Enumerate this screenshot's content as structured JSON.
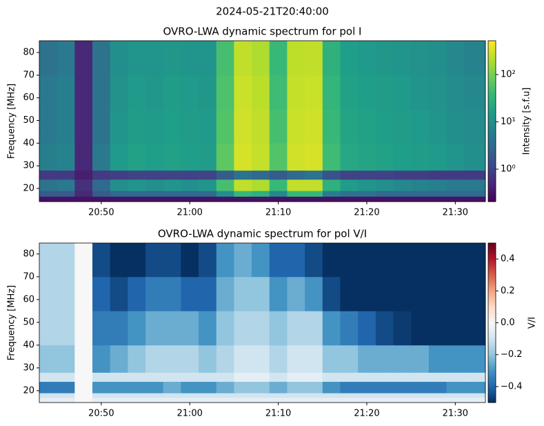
{
  "title": "2024-05-21T20:40:00",
  "chart_data": [
    {
      "type": "heatmap",
      "title": "OVRO-LWA dynamic spectrum for pol I",
      "ylabel": "Frequency [MHz]",
      "x": [
        1243,
        1245,
        1247,
        1249,
        1251,
        1253,
        1255,
        1257,
        1259,
        1261,
        1263,
        1265,
        1267,
        1269,
        1271,
        1273,
        1275,
        1277,
        1279,
        1281,
        1283,
        1285,
        1287,
        1289,
        1291,
        1293.4
      ],
      "y": [
        14.2,
        16.5,
        19,
        24,
        28,
        40,
        55,
        70,
        85.2
      ],
      "z": [
        [
          0.3,
          0.3,
          0.3,
          0.3,
          0.3,
          0.3,
          0.3,
          0.3,
          0.3,
          0.3,
          0.3,
          0.3,
          0.3,
          0.3,
          0.3,
          0.3,
          0.3,
          0.3,
          0.3,
          0.3,
          0.3,
          0.3,
          0.3,
          0.3,
          0.3
        ],
        [
          2,
          2,
          0.5,
          2,
          3,
          3,
          3,
          3,
          3,
          3,
          10,
          40,
          30,
          8,
          40,
          40,
          6,
          4,
          4,
          3,
          3,
          3,
          3,
          3,
          3
        ],
        [
          4,
          5,
          0.6,
          3,
          10,
          12,
          10,
          12,
          10,
          12,
          50,
          250,
          200,
          40,
          250,
          250,
          30,
          15,
          12,
          10,
          8,
          7,
          6,
          5,
          5
        ],
        [
          0.8,
          0.8,
          0.4,
          0.8,
          0.9,
          1,
          1,
          1,
          1,
          1,
          2,
          4,
          3,
          2,
          3,
          4,
          1.5,
          1,
          1,
          1,
          0.9,
          0.9,
          0.8,
          0.8,
          0.8
        ],
        [
          6,
          7,
          0.5,
          5,
          14,
          18,
          16,
          18,
          16,
          15,
          70,
          320,
          260,
          60,
          300,
          320,
          45,
          22,
          20,
          18,
          16,
          15,
          14,
          12,
          10
        ],
        [
          5,
          6,
          0.5,
          4,
          12,
          15,
          14,
          16,
          15,
          14,
          60,
          300,
          250,
          50,
          280,
          300,
          40,
          20,
          18,
          16,
          15,
          14,
          12,
          10,
          9
        ],
        [
          5,
          6,
          0.5,
          4,
          11,
          14,
          13,
          15,
          14,
          13,
          55,
          280,
          230,
          45,
          260,
          280,
          35,
          18,
          16,
          15,
          14,
          12,
          11,
          9,
          8
        ],
        [
          4,
          5,
          0.5,
          4,
          10,
          12,
          12,
          13,
          12,
          12,
          50,
          250,
          200,
          40,
          240,
          250,
          30,
          16,
          14,
          13,
          12,
          11,
          10,
          8,
          7
        ]
      ],
      "xlim": [
        1243,
        1293.4
      ],
      "xticks": [
        {
          "value": 1250,
          "label": "20:50"
        },
        {
          "value": 1260,
          "label": "21:00"
        },
        {
          "value": 1270,
          "label": "21:10"
        },
        {
          "value": 1280,
          "label": "21:20"
        },
        {
          "value": 1290,
          "label": "21:30"
        }
      ],
      "ylim": [
        14.2,
        85.2
      ],
      "yticks": [
        20,
        30,
        40,
        50,
        60,
        70,
        80
      ],
      "colormap": "viridis",
      "zscale": "log",
      "colorbar_label": "Intensity [s.f.u]",
      "zlim": [
        0.206,
        519
      ],
      "zticks": [
        {
          "value": 1,
          "label": "10⁰"
        },
        {
          "value": 10,
          "label": "10¹"
        },
        {
          "value": 100,
          "label": "10²"
        }
      ]
    },
    {
      "type": "heatmap",
      "title": "OVRO-LWA dynamic spectrum for pol V/I",
      "ylabel": "Frequency [MHz]",
      "x": [
        1243,
        1245,
        1247,
        1249,
        1251,
        1253,
        1255,
        1257,
        1259,
        1261,
        1263,
        1265,
        1267,
        1269,
        1271,
        1273,
        1275,
        1277,
        1279,
        1281,
        1283,
        1285,
        1287,
        1289,
        1291,
        1293.4
      ],
      "y": [
        14.8,
        17,
        19,
        24,
        28,
        40,
        55,
        70,
        84.8
      ],
      "z": [
        [
          -0.05,
          -0.05,
          0,
          -0.05,
          -0.05,
          -0.05,
          -0.05,
          -0.05,
          -0.05,
          -0.05,
          -0.05,
          -0.05,
          -0.05,
          -0.05,
          -0.05,
          -0.05,
          -0.05,
          -0.05,
          -0.05,
          -0.05,
          -0.05,
          -0.05,
          -0.05,
          -0.05,
          -0.05
        ],
        [
          -0.1,
          -0.1,
          0,
          -0.1,
          -0.1,
          -0.1,
          -0.1,
          -0.1,
          -0.1,
          -0.1,
          -0.1,
          -0.1,
          -0.1,
          -0.1,
          -0.1,
          -0.1,
          -0.1,
          -0.1,
          -0.1,
          -0.1,
          -0.1,
          -0.1,
          -0.1,
          -0.1,
          -0.1
        ],
        [
          -0.35,
          -0.35,
          0,
          -0.3,
          -0.3,
          -0.3,
          -0.3,
          -0.25,
          -0.3,
          -0.3,
          -0.25,
          -0.2,
          -0.2,
          -0.25,
          -0.2,
          -0.2,
          -0.3,
          -0.35,
          -0.35,
          -0.35,
          -0.35,
          -0.35,
          -0.35,
          -0.3,
          -0.3
        ],
        [
          -0.1,
          -0.1,
          0,
          -0.1,
          -0.1,
          -0.1,
          -0.1,
          -0.1,
          -0.1,
          -0.1,
          -0.1,
          -0.05,
          -0.05,
          -0.1,
          -0.05,
          -0.05,
          -0.1,
          -0.1,
          -0.1,
          -0.1,
          -0.1,
          -0.1,
          -0.1,
          -0.1,
          -0.1
        ],
        [
          -0.2,
          -0.2,
          0,
          -0.3,
          -0.25,
          -0.2,
          -0.15,
          -0.15,
          -0.15,
          -0.2,
          -0.15,
          -0.1,
          -0.1,
          -0.15,
          -0.1,
          -0.1,
          -0.2,
          -0.2,
          -0.25,
          -0.25,
          -0.25,
          -0.25,
          -0.3,
          -0.3,
          -0.3
        ],
        [
          -0.15,
          -0.15,
          0,
          -0.35,
          -0.35,
          -0.3,
          -0.25,
          -0.25,
          -0.25,
          -0.3,
          -0.2,
          -0.15,
          -0.15,
          -0.2,
          -0.15,
          -0.15,
          -0.3,
          -0.35,
          -0.4,
          -0.45,
          -0.48,
          -0.5,
          -0.5,
          -0.5,
          -0.5
        ],
        [
          -0.15,
          -0.15,
          0,
          -0.4,
          -0.45,
          -0.4,
          -0.35,
          -0.35,
          -0.4,
          -0.4,
          -0.25,
          -0.2,
          -0.2,
          -0.3,
          -0.25,
          -0.3,
          -0.45,
          -0.5,
          -0.5,
          -0.5,
          -0.5,
          -0.5,
          -0.5,
          -0.5,
          -0.5
        ],
        [
          -0.15,
          -0.15,
          0,
          -0.45,
          -0.5,
          -0.5,
          -0.45,
          -0.45,
          -0.5,
          -0.45,
          -0.3,
          -0.25,
          -0.3,
          -0.4,
          -0.4,
          -0.45,
          -0.5,
          -0.5,
          -0.5,
          -0.5,
          -0.5,
          -0.5,
          -0.5,
          -0.5,
          -0.5
        ]
      ],
      "xlim": [
        1243,
        1293.4
      ],
      "xticks": [
        {
          "value": 1250,
          "label": "20:50"
        },
        {
          "value": 1260,
          "label": "21:00"
        },
        {
          "value": 1270,
          "label": "21:10"
        },
        {
          "value": 1280,
          "label": "21:20"
        },
        {
          "value": 1290,
          "label": "21:30"
        }
      ],
      "ylim": [
        14.8,
        84.8
      ],
      "yticks": [
        20,
        30,
        40,
        50,
        60,
        70,
        80
      ],
      "colormap": "RdBu_r",
      "zscale": "linear",
      "colorbar_label": "V/I",
      "zlim": [
        -0.5,
        0.5
      ],
      "zticks": [
        {
          "value": -0.4,
          "label": "−0.4"
        },
        {
          "value": -0.2,
          "label": "−0.2"
        },
        {
          "value": 0,
          "label": "0.0"
        },
        0.2,
        0.4
      ]
    }
  ]
}
